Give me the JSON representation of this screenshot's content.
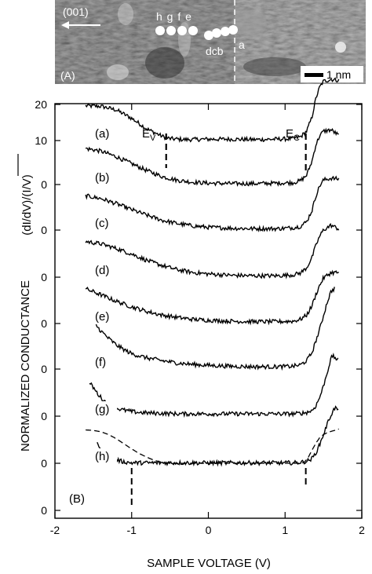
{
  "stm_panel": {
    "panel_label": "(A)",
    "direction_label": "(001)",
    "point_labels_top": "h g f e",
    "point_labels_bottom": "dcb",
    "point_label_a": "a",
    "scale_bar_label": "1 nm"
  },
  "chart_data": {
    "type": "line",
    "panel_label": "(B)",
    "xlabel": "SAMPLE VOLTAGE (V)",
    "ylabel": "NORMALIZED CONDUCTANCE",
    "ylabel_formula": "(dI/dV)/(I/V)",
    "xlim": [
      -2,
      2
    ],
    "xticks": [
      "-2",
      "-1",
      "0",
      "1",
      "2"
    ],
    "yticks": [
      "0",
      "0",
      "0",
      "0",
      "0",
      "0",
      "0",
      "0",
      "10",
      "20"
    ],
    "ev_label": "E",
    "ev_sub": "V",
    "ec_label": "E",
    "ec_sub": "C",
    "ev_voltage": -0.55,
    "ec_voltage": 1.27,
    "gap_markers_h": [
      -1.0,
      1.27
    ],
    "series": [
      {
        "name": "(a)",
        "offset": 0,
        "x": [
          -1.6,
          -1.4,
          -1.2,
          -1.0,
          -0.8,
          -0.6,
          -0.5,
          -0.3,
          0,
          0.3,
          0.6,
          0.9,
          1.1,
          1.2,
          1.28,
          1.35,
          1.4,
          1.45,
          1.5,
          1.6,
          1.7
        ],
        "y": [
          7.5,
          7.4,
          6.6,
          4.8,
          2.5,
          0.9,
          0.4,
          0.2,
          0.3,
          0.3,
          0.2,
          0.3,
          0.4,
          0.8,
          2.0,
          5.0,
          9.0,
          11.5,
          12.8,
          13.2,
          13.0
        ]
      },
      {
        "name": "(b)",
        "offset": 1,
        "x": [
          -1.6,
          -1.4,
          -1.2,
          -1.0,
          -0.8,
          -0.6,
          -0.4,
          -0.2,
          0,
          0.3,
          0.6,
          0.9,
          1.1,
          1.2,
          1.28,
          1.35,
          1.4,
          1.45,
          1.5,
          1.6,
          1.7
        ],
        "y": [
          7.8,
          7.2,
          6.0,
          4.5,
          3.0,
          1.7,
          0.9,
          0.5,
          0.3,
          0.2,
          0.2,
          0.3,
          0.4,
          0.8,
          2.0,
          5.0,
          8.5,
          10.5,
          11.5,
          11.8,
          10.6
        ]
      },
      {
        "name": "(c)",
        "offset": 2,
        "x": [
          -1.6,
          -1.4,
          -1.2,
          -1.0,
          -0.8,
          -0.6,
          -0.4,
          -0.2,
          0,
          0.3,
          0.6,
          0.9,
          1.1,
          1.2,
          1.28,
          1.35,
          1.4,
          1.45,
          1.5,
          1.6,
          1.7
        ],
        "y": [
          7.4,
          6.8,
          5.7,
          4.4,
          3.2,
          2.1,
          1.4,
          0.9,
          0.6,
          0.4,
          0.3,
          0.3,
          0.5,
          0.8,
          1.8,
          4.2,
          7.3,
          9.5,
          10.8,
          11.2,
          11.0
        ]
      },
      {
        "name": "(d)",
        "offset": 3,
        "x": [
          -1.6,
          -1.4,
          -1.2,
          -1.0,
          -0.8,
          -0.6,
          -0.4,
          -0.2,
          0,
          0.3,
          0.6,
          0.9,
          1.1,
          1.2,
          1.28,
          1.35,
          1.4,
          1.45,
          1.5,
          1.6,
          1.7
        ],
        "y": [
          7.7,
          7.2,
          6.2,
          5.0,
          3.6,
          2.5,
          1.6,
          1.0,
          0.7,
          0.4,
          0.3,
          0.3,
          0.5,
          0.9,
          2.0,
          4.2,
          6.8,
          8.8,
          10.2,
          11.2,
          10.4
        ]
      },
      {
        "name": "(e)",
        "offset": 4,
        "x": [
          -1.6,
          -1.4,
          -1.2,
          -1.0,
          -0.8,
          -0.6,
          -0.4,
          -0.2,
          0,
          0.3,
          0.6,
          0.9,
          1.1,
          1.2,
          1.28,
          1.35,
          1.4,
          1.45,
          1.5,
          1.6,
          1.7
        ],
        "y": [
          7.5,
          6.2,
          4.8,
          3.6,
          2.6,
          1.8,
          1.3,
          0.9,
          0.7,
          0.5,
          0.4,
          0.4,
          0.5,
          0.9,
          1.8,
          3.8,
          6.2,
          8.2,
          9.8,
          11.0,
          11.0
        ]
      },
      {
        "name": "(f)",
        "offset": 5,
        "x": [
          -1.5,
          -1.4,
          -1.3,
          -1.2,
          -1.1,
          -1.0,
          -0.8,
          -0.6,
          -0.4,
          -0.2,
          0,
          0.3,
          0.6,
          0.9,
          1.1,
          1.2,
          1.28,
          1.35,
          1.4,
          1.45,
          1.5,
          1.55,
          1.6,
          1.65
        ],
        "y": [
          10.2,
          8.2,
          6.6,
          5.2,
          4.2,
          3.3,
          2.4,
          1.8,
          1.3,
          1.0,
          0.8,
          0.6,
          0.5,
          0.5,
          0.6,
          0.9,
          1.8,
          3.5,
          6.0,
          8.5,
          11.5,
          14.5,
          16.8,
          17.5
        ]
      },
      {
        "name": "(g)",
        "offset": 6,
        "x": [
          -1.55,
          -1.5,
          -1.45,
          -1.4,
          -1.35,
          -1.3,
          -1.25,
          -1.2,
          -1.1,
          -1.0,
          -0.9,
          -0.8,
          -0.6,
          -0.4,
          -0.2,
          0,
          0.3,
          0.6,
          0.9,
          1.1,
          1.2,
          1.28,
          1.35,
          1.4,
          1.45,
          1.5,
          1.55,
          1.6,
          1.62,
          1.7
        ],
        "y": [
          7.2,
          6.2,
          5.0,
          4.0,
          3.2,
          2.6,
          2.1,
          1.7,
          1.3,
          1.0,
          0.8,
          0.7,
          0.6,
          0.5,
          0.5,
          0.5,
          0.5,
          0.5,
          0.5,
          0.5,
          0.6,
          0.8,
          1.2,
          2.2,
          4.0,
          6.5,
          9.5,
          12.5,
          13.0,
          12.0
        ]
      },
      {
        "name": "(h)",
        "offset": 7,
        "x": [
          -1.45,
          -1.4,
          -1.35,
          -1.3,
          -1.25,
          -1.2,
          -1.15,
          -1.1,
          -1.05,
          -1.0,
          -0.9,
          -0.6,
          -0.3,
          0,
          0.3,
          0.6,
          0.9,
          1.1,
          1.2,
          1.28,
          1.35,
          1.4,
          1.45,
          1.5,
          1.55,
          1.6,
          1.65,
          1.7
        ],
        "y": [
          4.2,
          3.2,
          2.4,
          1.8,
          1.2,
          0.8,
          0.5,
          0.3,
          0.2,
          0.1,
          0.1,
          0.1,
          0.1,
          0.1,
          0.1,
          0.1,
          0.1,
          0.1,
          0.2,
          0.4,
          1.0,
          2.2,
          4.0,
          6.2,
          8.5,
          10.5,
          12.0,
          11.5
        ]
      },
      {
        "name": "dashed",
        "offset": 7,
        "dashed": true,
        "x": [
          -1.6,
          -1.5,
          -1.4,
          -1.3,
          -1.2,
          -1.1,
          -1.0,
          -0.9,
          -0.8,
          -0.7,
          -0.6,
          -0.5,
          0,
          0.5,
          1.0,
          1.2,
          1.25,
          1.3,
          1.35,
          1.4,
          1.45,
          1.5,
          1.55,
          1.6,
          1.65,
          1.7
        ],
        "y": [
          7.2,
          7.1,
          6.8,
          6.2,
          5.3,
          4.2,
          3.1,
          2.1,
          1.3,
          0.6,
          0.2,
          0.0,
          0.0,
          0.0,
          0.0,
          0.0,
          0.2,
          1.2,
          2.8,
          4.3,
          5.5,
          6.2,
          6.6,
          6.9,
          7.1,
          7.4
        ]
      }
    ]
  }
}
